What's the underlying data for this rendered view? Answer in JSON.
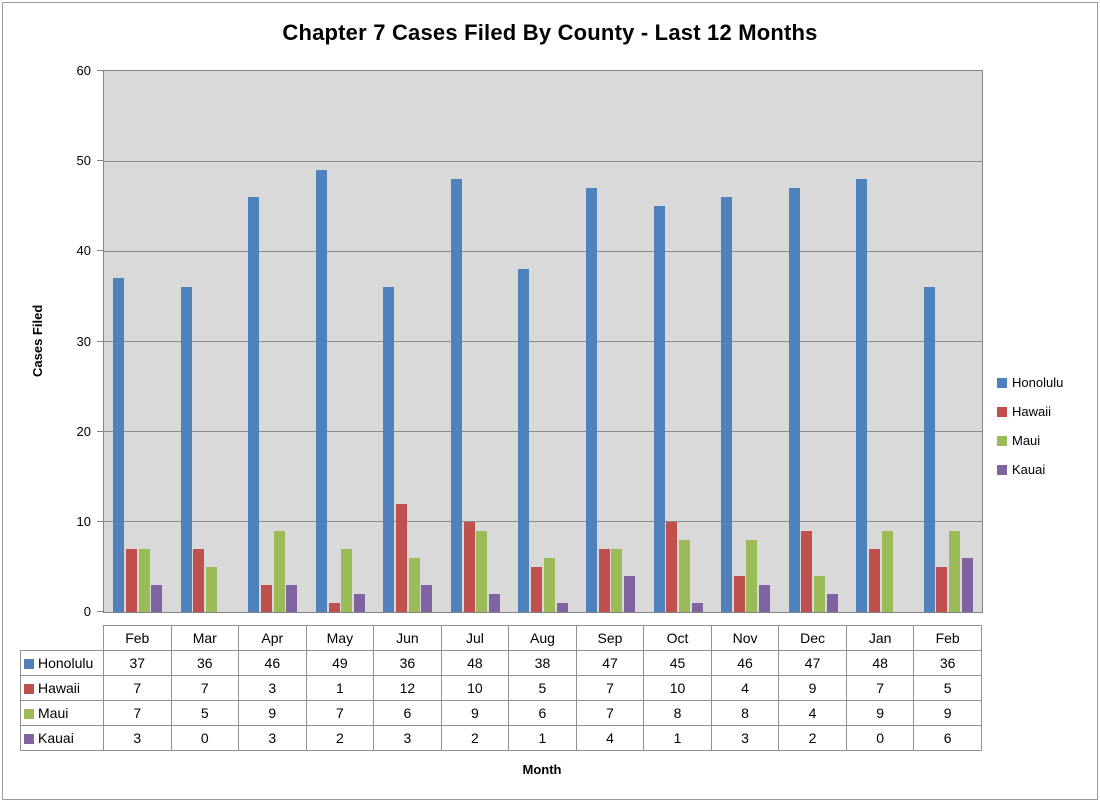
{
  "chart_data": {
    "type": "bar",
    "title": "Chapter 7 Cases Filed By County - Last 12 Months",
    "xlabel": "Month",
    "ylabel": "Cases Filed",
    "ylim": [
      0,
      60
    ],
    "yticks": [
      0,
      10,
      20,
      30,
      40,
      50,
      60
    ],
    "grid": true,
    "legend_position": "right",
    "data_table_shown": true,
    "categories": [
      "Feb",
      "Mar",
      "Apr",
      "May",
      "Jun",
      "Jul",
      "Aug",
      "Sep",
      "Oct",
      "Nov",
      "Dec",
      "Jan",
      "Feb"
    ],
    "series": [
      {
        "name": "Honolulu",
        "color": "#4F81BD",
        "values": [
          37,
          36,
          46,
          49,
          36,
          48,
          38,
          47,
          45,
          46,
          47,
          48,
          36
        ]
      },
      {
        "name": "Hawaii",
        "color": "#C0504D",
        "values": [
          7,
          7,
          3,
          1,
          12,
          10,
          5,
          7,
          10,
          4,
          9,
          7,
          5
        ]
      },
      {
        "name": "Maui",
        "color": "#9BBB59",
        "values": [
          7,
          5,
          9,
          7,
          6,
          9,
          6,
          7,
          8,
          8,
          4,
          9,
          9
        ]
      },
      {
        "name": "Kauai",
        "color": "#8064A2",
        "values": [
          3,
          0,
          3,
          2,
          3,
          2,
          1,
          4,
          1,
          3,
          2,
          0,
          6
        ]
      }
    ]
  },
  "colors": {
    "plot_background": "#D9D9D9",
    "gridline": "#8A8A8A",
    "axis_line": "#848484",
    "table_border": "#919191",
    "frame_border": "#9A9A9A",
    "text": "#000000"
  }
}
